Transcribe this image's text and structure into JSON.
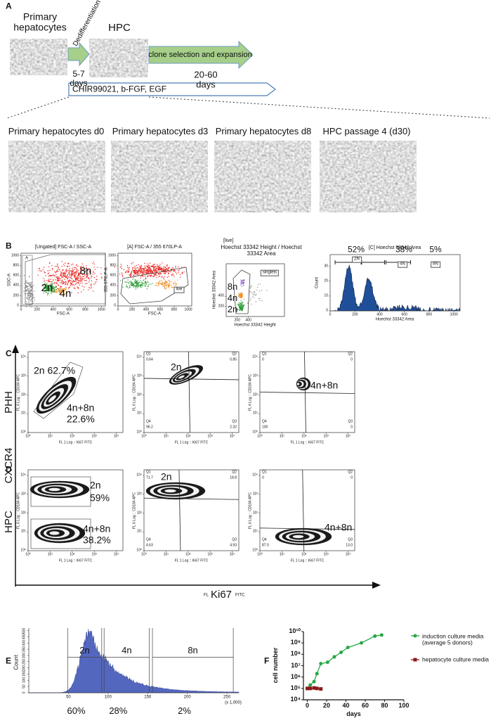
{
  "panel_a": {
    "label": "A",
    "start": "Primary hepatocytes",
    "process": "Dedifferentiation",
    "result": "HPC",
    "duration_1": "5-7 days",
    "expansion": "clone selection and expansion",
    "duration_2": "20-60 days",
    "factors": "CHIR99021, b-FGF, EGF",
    "images": [
      "Primary hepatocytes d0",
      "Primary hepatocytes d3",
      "Primary hepatocytes d8",
      "HPC passage 4 (d30)"
    ]
  },
  "panel_b": {
    "label": "B",
    "xlim": [
      0,
      1050
    ],
    "ylim": [
      0,
      1050
    ],
    "plots": [
      {
        "title": "[Ungated] FSC-A / SSC-A",
        "x_label": "FSC-A",
        "y_label": "SSC-A",
        "gate": "A",
        "annotations": [
          "2n",
          "4n",
          "8n"
        ],
        "xticks": [
          0,
          200,
          400,
          600,
          800,
          1000
        ],
        "yticks": [
          0,
          200,
          400,
          600,
          800,
          1000
        ]
      },
      {
        "title": "[A] FSC-A / 355 670LP-A",
        "x_label": "FSC-A",
        "y_label": "355 670LP-A",
        "gate": "live",
        "xticks": [
          0,
          200,
          400,
          600,
          800,
          1000
        ],
        "yticks": [
          0,
          200,
          400,
          600,
          800,
          1000
        ]
      },
      {
        "title": "[live]",
        "subtitle": "Hoechst 33342 Height / Hoechst 33342 Area",
        "x_label": "Hoechst 33342 Height",
        "y_label": "Hoechst 33342 Area",
        "gate": "singlets",
        "annotations": [
          "8n",
          "4n",
          "2n"
        ],
        "xticks": [
          200,
          400
        ],
        "yticks": [
          200,
          400
        ]
      },
      {
        "title": "[C] Hoechst 33342 Area",
        "x_label": "Hoechst 33342 Area",
        "y_label": "Count",
        "ylim": [
          0,
          38
        ],
        "xticks": [
          0,
          200,
          400,
          600,
          800,
          1000
        ],
        "yticks": [
          0,
          10,
          20,
          30
        ],
        "gates": [
          {
            "percent": "52%",
            "name": "2N"
          },
          {
            "percent": "38%",
            "name": "4N"
          },
          {
            "percent": "5%",
            "name": "8N"
          }
        ]
      }
    ]
  },
  "panel_cd": {
    "labels": [
      "C",
      "D"
    ],
    "rows": [
      "PHH",
      "HPC"
    ],
    "y_axis": "CXCR4",
    "x_axis": "Ki67",
    "x_axis_prefix": "FL",
    "x_axis_suffix": "FITC",
    "plot_x_label": "FL 1 Log :: Ki67 FITC",
    "plot_y_label": "FL 6 Log :: CD184 APC",
    "lim": [
      1,
      20000
    ],
    "ticks": [
      {
        "value": 1,
        "label": "10⁰"
      },
      {
        "value": 10,
        "label": "10¹"
      },
      {
        "value": 100,
        "label": "10²"
      },
      {
        "value": 1000,
        "label": "10³"
      },
      {
        "value": 10000,
        "label": "10⁴"
      }
    ],
    "plots": [
      [
        {
          "annotations": [
            [
              "2n  62.7%"
            ],
            [
              "4n+8n",
              "22.6%"
            ]
          ]
        },
        {
          "annotations": [
            [
              "2n"
            ]
          ],
          "quadrants": [
            {
              "name": "Q1",
              "value": "0.64"
            },
            {
              "name": "Q2",
              "value": "0.85"
            },
            {
              "name": "Q4",
              "value": "96.2"
            },
            {
              "name": "Q3",
              "value": "2.32"
            }
          ]
        },
        {
          "annotations": [
            [
              "4n+8n"
            ]
          ],
          "quadrants": [
            {
              "name": "Q1",
              "value": "0"
            },
            {
              "name": "Q2",
              "value": "0"
            },
            {
              "name": "Q4",
              "value": "100"
            },
            {
              "name": "Q3",
              "value": "0"
            }
          ]
        }
      ],
      [
        {
          "annotations": [
            [
              "2n",
              "59%"
            ],
            [
              "4n+8n",
              "38.2%"
            ]
          ]
        },
        {
          "annotations": [
            [
              "2n"
            ]
          ],
          "quadrants": [
            {
              "name": "Q1",
              "value": "71.7"
            },
            {
              "name": "Q2",
              "value": "18.8"
            },
            {
              "name": "Q4",
              "value": "4.63"
            },
            {
              "name": "Q3",
              "value": "4.93"
            }
          ]
        },
        {
          "annotations": [
            [
              "4n+8n"
            ]
          ],
          "quadrants": [
            {
              "name": "Q1",
              "value": "0"
            },
            {
              "name": "Q2",
              "value": "0"
            },
            {
              "name": "Q4",
              "value": "87.0"
            },
            {
              "name": "Q3",
              "value": "13.0"
            }
          ]
        }
      ]
    ]
  },
  "panel_e": {
    "label": "E",
    "y_label": "Count",
    "x_unit": "(x 1,000)",
    "xlim": [
      0,
      265
    ],
    "ylim": [
      0,
      520
    ],
    "xticks": [
      50,
      100,
      150,
      200,
      250
    ],
    "yticks": [
      0,
      50,
      100,
      150,
      200,
      250,
      300,
      350,
      400,
      450,
      500
    ],
    "gates": [
      {
        "name": "2n",
        "percent": "60%",
        "range": [
          49,
          92
        ]
      },
      {
        "name": "4n",
        "percent": "28%",
        "range": [
          95,
          152
        ]
      },
      {
        "name": "8n",
        "percent": "2%",
        "range": [
          156,
          258
        ]
      }
    ]
  },
  "chart_data": {
    "type": "line",
    "label": "F",
    "x_label": "days",
    "y_label": "cell number",
    "yscale": "log",
    "legend": "right",
    "xlim": [
      -4,
      100
    ],
    "xticks": [
      0,
      20,
      40,
      60,
      80,
      100
    ],
    "ylim": [
      10000,
      10000000000
    ],
    "yticks": [
      {
        "value": 10000,
        "label": "10⁴"
      },
      {
        "value": 100000,
        "label": "10⁵"
      },
      {
        "value": 1000000,
        "label": "10⁶"
      },
      {
        "value": 10000000,
        "label": "10⁷"
      },
      {
        "value": 100000000,
        "label": "10⁸"
      },
      {
        "value": 1000000000,
        "label": "10⁹"
      },
      {
        "value": 10000000000,
        "label": "10¹⁰"
      }
    ],
    "series": [
      {
        "name": "induction culture media (average 5 donors)",
        "color": "#27a844",
        "marker": "circle",
        "x": [
          0,
          3,
          7,
          10,
          14,
          21,
          28,
          35,
          42,
          56,
          70,
          77
        ],
        "values": [
          100000,
          200000,
          400000,
          2000000,
          15000000,
          20000000,
          60000000,
          150000000,
          400000000,
          1000000000,
          4000000000,
          5000000000
        ]
      },
      {
        "name": "hepatocyte culture media",
        "color": "#8b1a1a",
        "marker": "square",
        "x": [
          0,
          3,
          7,
          10,
          14
        ],
        "values": [
          100000,
          100000,
          110000,
          100000,
          90000
        ]
      }
    ]
  }
}
